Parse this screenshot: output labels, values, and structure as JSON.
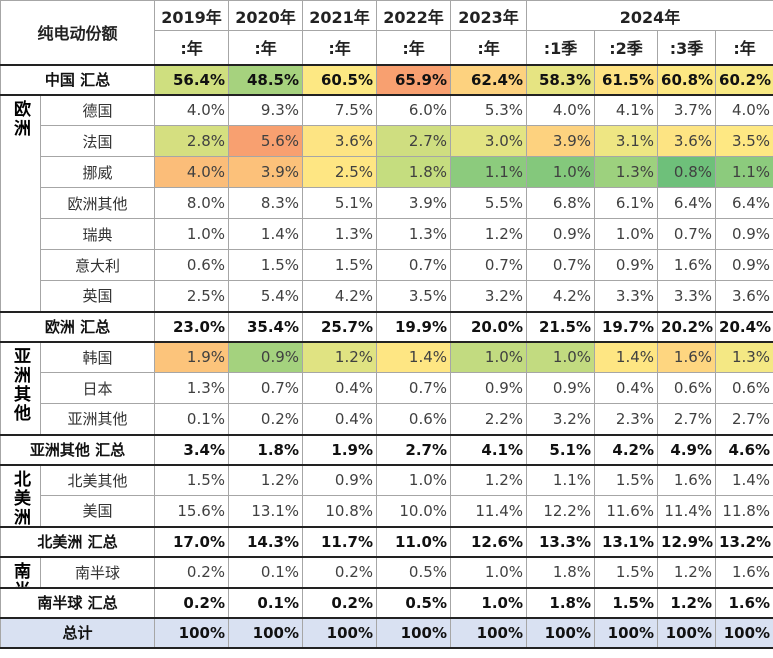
{
  "header": {
    "title": "纯电动份额",
    "years": [
      "2019年",
      "2020年",
      "2021年",
      "2022年",
      "2023年",
      "2024年"
    ],
    "periods": [
      ":年",
      ":年",
      ":年",
      ":年",
      ":年",
      ":1季",
      ":2季",
      ":3季",
      ":年"
    ]
  },
  "sections": [
    {
      "total": {
        "label": "中国 汇总",
        "values": [
          "56.4%",
          "48.5%",
          "60.5%",
          "65.9%",
          "62.4%",
          "58.3%",
          "61.5%",
          "60.8%",
          "60.2%"
        ],
        "colors": [
          "#cfdf7f",
          "#a6d27e",
          "#fde883",
          "#f8a070",
          "#fdd27f",
          "#e6e482",
          "#fee283",
          "#fde883",
          "#f8e984"
        ]
      }
    },
    {
      "group": "欧洲",
      "rows": [
        {
          "label": "德国",
          "values": [
            "4.0%",
            "9.3%",
            "7.5%",
            "6.0%",
            "5.3%",
            "4.0%",
            "4.1%",
            "3.7%",
            "4.0%"
          ]
        },
        {
          "label": "法国",
          "values": [
            "2.8%",
            "5.6%",
            "3.6%",
            "2.7%",
            "3.0%",
            "3.9%",
            "3.1%",
            "3.6%",
            "3.5%"
          ],
          "colors": [
            "#d5df80",
            "#f8a070",
            "#fde483",
            "#cfde80",
            "#e3e483",
            "#fdd27f",
            "#eee683",
            "#fde483",
            "#fee883"
          ]
        },
        {
          "label": "挪威",
          "values": [
            "4.0%",
            "3.9%",
            "2.5%",
            "1.8%",
            "1.1%",
            "1.0%",
            "1.3%",
            "0.8%",
            "1.1%"
          ],
          "colors": [
            "#fbbd79",
            "#fcc17a",
            "#fee683",
            "#c5dd7f",
            "#8ccb7d",
            "#84c87c",
            "#9dd17e",
            "#6ec07a",
            "#8ccb7d"
          ]
        },
        {
          "label": "欧洲其他",
          "values": [
            "8.0%",
            "8.3%",
            "5.1%",
            "3.9%",
            "5.5%",
            "6.8%",
            "6.1%",
            "6.4%",
            "6.4%"
          ]
        },
        {
          "label": "瑞典",
          "values": [
            "1.0%",
            "1.4%",
            "1.3%",
            "1.3%",
            "1.2%",
            "0.9%",
            "1.0%",
            "0.7%",
            "0.9%"
          ]
        },
        {
          "label": "意大利",
          "values": [
            "0.6%",
            "1.5%",
            "1.5%",
            "0.7%",
            "0.7%",
            "0.7%",
            "0.9%",
            "1.6%",
            "0.9%"
          ]
        },
        {
          "label": "英国",
          "values": [
            "2.5%",
            "5.4%",
            "4.2%",
            "3.5%",
            "3.2%",
            "4.2%",
            "3.3%",
            "3.3%",
            "3.6%"
          ]
        }
      ],
      "total": {
        "label": "欧洲 汇总",
        "values": [
          "23.0%",
          "35.4%",
          "25.7%",
          "19.9%",
          "20.0%",
          "21.5%",
          "19.7%",
          "20.2%",
          "20.4%"
        ]
      }
    },
    {
      "group": "亚洲其他",
      "rows": [
        {
          "label": "韩国",
          "values": [
            "1.9%",
            "0.9%",
            "1.2%",
            "1.4%",
            "1.0%",
            "1.0%",
            "1.4%",
            "1.6%",
            "1.3%"
          ],
          "colors": [
            "#fcc47b",
            "#a4d27e",
            "#e0e382",
            "#fee683",
            "#c2db80",
            "#c2db80",
            "#fee683",
            "#fed680",
            "#f4e884"
          ]
        },
        {
          "label": "日本",
          "values": [
            "1.3%",
            "0.7%",
            "0.4%",
            "0.7%",
            "0.9%",
            "0.9%",
            "0.4%",
            "0.6%",
            "0.6%"
          ]
        },
        {
          "label": "亚洲其他",
          "values": [
            "0.1%",
            "0.2%",
            "0.4%",
            "0.6%",
            "2.2%",
            "3.2%",
            "2.3%",
            "2.7%",
            "2.7%"
          ]
        }
      ],
      "total": {
        "label": "亚洲其他 汇总",
        "values": [
          "3.4%",
          "1.8%",
          "1.9%",
          "2.7%",
          "4.1%",
          "5.1%",
          "4.2%",
          "4.9%",
          "4.6%"
        ]
      }
    },
    {
      "group": "北美洲",
      "rows": [
        {
          "label": "北美其他",
          "values": [
            "1.5%",
            "1.2%",
            "0.9%",
            "1.0%",
            "1.2%",
            "1.1%",
            "1.5%",
            "1.6%",
            "1.4%"
          ]
        },
        {
          "label": "美国",
          "values": [
            "15.6%",
            "13.1%",
            "10.8%",
            "10.0%",
            "11.4%",
            "12.2%",
            "11.6%",
            "11.4%",
            "11.8%"
          ]
        }
      ],
      "total": {
        "label": "北美洲 汇总",
        "values": [
          "17.0%",
          "14.3%",
          "11.7%",
          "11.0%",
          "12.6%",
          "13.3%",
          "13.1%",
          "12.9%",
          "13.2%"
        ]
      }
    },
    {
      "group": "南半球",
      "rows": [
        {
          "label": "南半球",
          "values": [
            "0.2%",
            "0.1%",
            "0.2%",
            "0.5%",
            "1.0%",
            "1.8%",
            "1.5%",
            "1.2%",
            "1.6%"
          ]
        }
      ],
      "total": {
        "label": "南半球 汇总",
        "values": [
          "0.2%",
          "0.1%",
          "0.2%",
          "0.5%",
          "1.0%",
          "1.8%",
          "1.5%",
          "1.2%",
          "1.6%"
        ]
      }
    },
    {
      "total": {
        "label": "总计",
        "values": [
          "100%",
          "100%",
          "100%",
          "100%",
          "100%",
          "100%",
          "100%",
          "100%",
          "100%"
        ]
      }
    }
  ]
}
